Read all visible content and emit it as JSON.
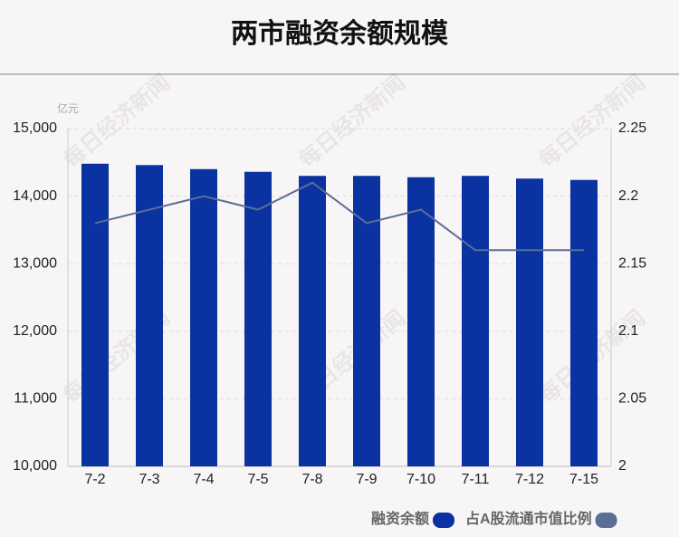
{
  "chart_data": {
    "type": "bar",
    "title": "两市融资余额规模",
    "y_unit": "亿元",
    "watermark": "每日经济新闻",
    "categories": [
      "7-2",
      "7-3",
      "7-4",
      "7-5",
      "7-8",
      "7-9",
      "7-10",
      "7-11",
      "7-12",
      "7-15"
    ],
    "series": [
      {
        "name": "融资余额",
        "type": "bar",
        "color": "#0a32a0",
        "values": [
          14480,
          14460,
          14400,
          14360,
          14300,
          14300,
          14280,
          14300,
          14260,
          14240
        ]
      },
      {
        "name": "占A股流通市值比例",
        "type": "line",
        "axis": "y2",
        "color": "#5b6e96",
        "values": [
          2.18,
          2.19,
          2.2,
          2.19,
          2.21,
          2.18,
          2.19,
          2.16,
          2.16,
          2.16
        ]
      }
    ],
    "ylim": [
      10000,
      15000
    ],
    "yticks": [
      {
        "value": 10000,
        "label": "10,000"
      },
      {
        "value": 11000,
        "label": "11,000"
      },
      {
        "value": 12000,
        "label": "12,000"
      },
      {
        "value": 13000,
        "label": "13,000"
      },
      {
        "value": 14000,
        "label": "14,000"
      },
      {
        "value": 15000,
        "label": "15,000"
      }
    ],
    "y2lim": [
      2,
      2.25
    ],
    "y2ticks": [
      2,
      2.05,
      2.1,
      2.15,
      2.2,
      2.25
    ],
    "grid": true
  }
}
